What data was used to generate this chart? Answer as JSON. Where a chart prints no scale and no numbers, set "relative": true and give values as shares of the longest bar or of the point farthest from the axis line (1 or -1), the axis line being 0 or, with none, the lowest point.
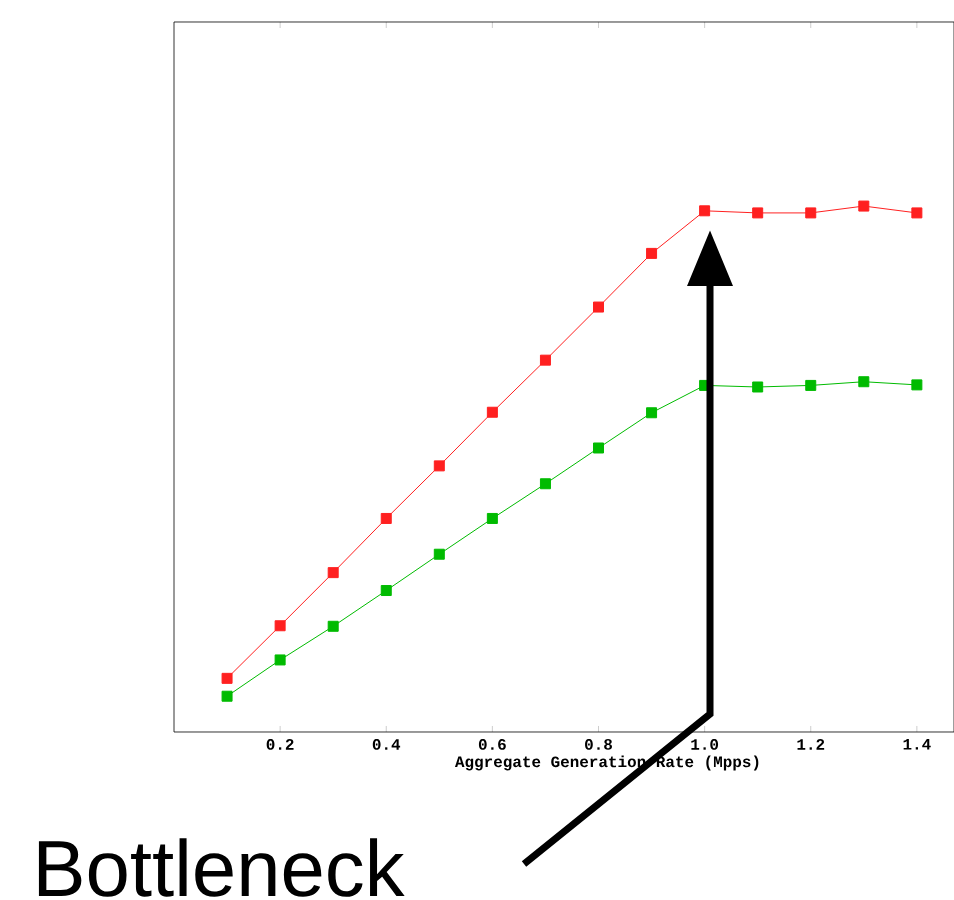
{
  "chart_data": {
    "type": "line",
    "xlabel": "Aggregate Generation Rate (Mpps)",
    "relative": true,
    "x": [
      0.1,
      0.2,
      0.3,
      0.4,
      0.5,
      0.6,
      0.7,
      0.8,
      0.9,
      1.0,
      1.1,
      1.2,
      1.3,
      1.4
    ],
    "series": [
      {
        "color": "#ff2020",
        "values": [
          0.102,
          0.202,
          0.303,
          0.406,
          0.506,
          0.608,
          0.707,
          0.808,
          0.91,
          0.991,
          0.987,
          0.987,
          1,
          0.987
        ]
      },
      {
        "color": "#00bb00",
        "values": [
          0.068,
          0.137,
          0.201,
          0.269,
          0.338,
          0.406,
          0.472,
          0.54,
          0.607,
          0.659,
          0.656,
          0.659,
          0.666,
          0.66
        ]
      }
    ],
    "xlim": [
      0,
      1.47
    ],
    "xticks": [
      0.2,
      0.4,
      0.6,
      0.8,
      {
        "value": 1.0,
        "label": "1.0"
      },
      1.2,
      1.4
    ],
    "marker": "square",
    "grid": false,
    "tick_labels": "x",
    "annotations": [
      "Bottleneck"
    ]
  }
}
